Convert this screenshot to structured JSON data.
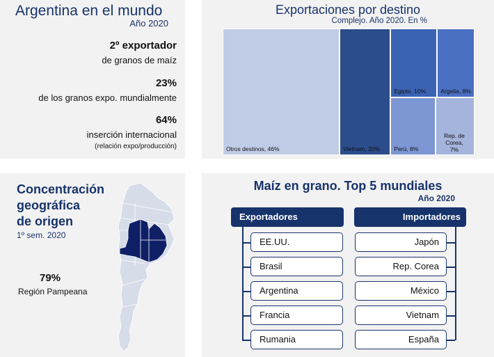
{
  "panel1": {
    "title": "Argentina en el mundo",
    "subtitle": "Año 2020",
    "stats": [
      {
        "big": "2º exportador",
        "small": "de granos de maíz"
      },
      {
        "big": "23%",
        "small": "de los granos expo. mundialmente"
      },
      {
        "big": "64%",
        "small": "inserción internacional",
        "note": "(relación expo/producción)"
      }
    ]
  },
  "panel2": {
    "title": "Exportaciones por destino",
    "subtitle": "Complejo. Año 2020. En %"
  },
  "panel3": {
    "title_lines": [
      "Concentración",
      "geográfica",
      "de origen"
    ],
    "subtitle": "1º sem. 2020",
    "value": "79%",
    "value_label": "Región Pampeana"
  },
  "panel4": {
    "title": "Maíz en grano. Top 5 mundiales",
    "subtitle": "Año 2020",
    "exporters_header": "Exportadores",
    "importers_header": "Importadores",
    "exporters": [
      "EE.UU.",
      "Brasil",
      "Argentina",
      "Francia",
      "Rumania"
    ],
    "importers": [
      "Japón",
      "Rep. Corea",
      "México",
      "Vietnam",
      "España"
    ]
  },
  "chart_data": {
    "type": "treemap",
    "title": "Exportaciones por destino",
    "subtitle": "Complejo. Año 2020. En %",
    "categories": [
      "Otros destinos",
      "Vietnam",
      "Egipto",
      "Argelia",
      "Perú",
      "Rep. de Corea"
    ],
    "values": [
      46,
      20,
      10,
      8,
      8,
      7
    ],
    "labels": [
      "Otros destinos, 46%",
      "Vietnam, 20%",
      "Egipto, 10%",
      "Argelia, 8%",
      "Perú, 8%",
      "Rep. de Corea, 7%"
    ],
    "colors": [
      "#c0cce6",
      "#2c4d8c",
      "#3a63b4",
      "#4a70c2",
      "#7d96d4",
      "#a4b4dc"
    ]
  },
  "colors": {
    "navy": "#17336b",
    "panel_bg": "#f2f2f2",
    "map_land": "#d6dce8",
    "map_highlight": "#0f1f66"
  }
}
